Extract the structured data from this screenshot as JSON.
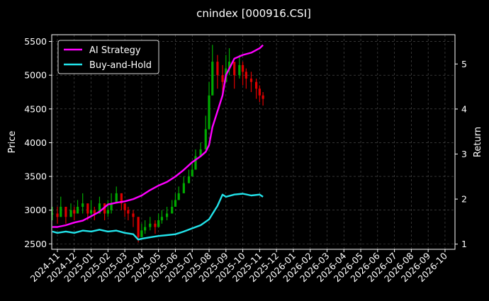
{
  "chart_data": {
    "type": "line",
    "title": "cnindex [000916.CSI]",
    "xlabel": "",
    "ylabel": "Price",
    "y2label": "Return",
    "grid": true,
    "legend_position": "top-left",
    "background": "#000000",
    "ylim": [
      2420,
      5600
    ],
    "y2lim": [
      0.885,
      5.65
    ],
    "yticks": [
      2500,
      3000,
      3500,
      4000,
      4500,
      5000,
      5500
    ],
    "y2ticks": [
      1,
      2,
      3,
      4,
      5
    ],
    "xticks": [
      "2024-11",
      "2024-12",
      "2025-01",
      "2025-02",
      "2025-03",
      "2025-04",
      "2025-05",
      "2025-06",
      "2025-07",
      "2025-08",
      "2025-09",
      "2025-10",
      "2025-11",
      "2025-12",
      "2026-01",
      "2026-02",
      "2026-03",
      "2026-04",
      "2026-05",
      "2026-06",
      "2026-07",
      "2026-08",
      "2026-09",
      "2026-10"
    ],
    "candle_up_color": "#00aa00",
    "candle_down_color": "#dd0000",
    "price_candles": {
      "description_units": "month index from 2024-11 (0) and price",
      "x": [
        -0.3,
        0.0,
        0.2,
        0.5,
        0.8,
        1.0,
        1.2,
        1.5,
        1.8,
        2.0,
        2.2,
        2.5,
        2.8,
        3.0,
        3.2,
        3.5,
        3.8,
        4.0,
        4.2,
        4.5,
        4.8,
        5.0,
        5.2,
        5.5,
        5.8,
        6.0,
        6.2,
        6.5,
        6.8,
        7.0,
        7.2,
        7.5,
        7.8,
        8.0,
        8.2,
        8.5,
        8.8,
        9.0,
        9.2,
        9.5,
        9.8,
        10.0,
        10.2,
        10.5,
        10.8,
        11.0,
        11.2,
        11.5,
        11.8,
        12.0,
        12.2
      ],
      "close": [
        2950,
        2900,
        3050,
        2900,
        3000,
        2950,
        3050,
        3100,
        2950,
        3000,
        2950,
        3100,
        2950,
        3000,
        3100,
        3250,
        3100,
        3000,
        2950,
        2900,
        2600,
        2700,
        2750,
        2800,
        2750,
        2850,
        2900,
        2950,
        3050,
        3150,
        3250,
        3400,
        3500,
        3600,
        3800,
        3900,
        4200,
        4700,
        5200,
        5000,
        4900,
        5100,
        5200,
        5000,
        5150,
        5050,
        4950,
        4900,
        4800,
        4700,
        4650
      ],
      "high": [
        3050,
        3050,
        3200,
        3050,
        3100,
        3050,
        3150,
        3250,
        3050,
        3150,
        3050,
        3200,
        3100,
        3150,
        3250,
        3350,
        3250,
        3100,
        3050,
        3000,
        2750,
        2800,
        2850,
        2900,
        2850,
        2950,
        3000,
        3050,
        3150,
        3250,
        3350,
        3500,
        3600,
        3700,
        3900,
        4000,
        4400,
        4900,
        5450,
        5300,
        5150,
        5300,
        5400,
        5200,
        5300,
        5200,
        5100,
        5050,
        4950,
        4850,
        4750
      ],
      "low": [
        2850,
        2800,
        2900,
        2800,
        2900,
        2850,
        2950,
        2950,
        2850,
        2900,
        2850,
        2950,
        2850,
        2900,
        2950,
        3100,
        3000,
        2900,
        2850,
        2750,
        2520,
        2600,
        2650,
        2700,
        2650,
        2750,
        2800,
        2850,
        2950,
        3050,
        3150,
        3300,
        3400,
        3500,
        3650,
        3800,
        3950,
        4400,
        4800,
        4800,
        4700,
        4900,
        5000,
        4800,
        4950,
        4850,
        4800,
        4750,
        4650,
        4600,
        4550
      ]
    },
    "series": [
      {
        "name": "AI Strategy",
        "color": "#ff00ff",
        "axis": "right",
        "x": [
          -0.3,
          0.0,
          0.5,
          1.0,
          1.5,
          2.0,
          2.5,
          3.0,
          3.5,
          4.0,
          4.5,
          5.0,
          5.5,
          6.0,
          6.5,
          7.0,
          7.5,
          8.0,
          8.5,
          8.8,
          9.0,
          9.2,
          9.5,
          9.8,
          10.0,
          10.5,
          11.0,
          11.5,
          12.0,
          12.2
        ],
        "values": [
          1.38,
          1.38,
          1.42,
          1.48,
          1.52,
          1.62,
          1.72,
          1.88,
          1.92,
          1.95,
          2.0,
          2.08,
          2.2,
          2.3,
          2.38,
          2.5,
          2.65,
          2.82,
          2.95,
          3.05,
          3.2,
          3.6,
          3.95,
          4.3,
          4.75,
          5.12,
          5.2,
          5.25,
          5.35,
          5.42
        ]
      },
      {
        "name": "Buy-and-Hold",
        "color": "#22e3ea",
        "axis": "right",
        "x": [
          -0.3,
          0.0,
          0.5,
          1.0,
          1.5,
          2.0,
          2.5,
          3.0,
          3.5,
          4.0,
          4.5,
          4.8,
          5.0,
          5.5,
          6.0,
          6.5,
          7.0,
          7.5,
          8.0,
          8.5,
          9.0,
          9.5,
          9.8,
          10.0,
          10.5,
          11.0,
          11.5,
          12.0,
          12.2
        ],
        "values": [
          1.28,
          1.25,
          1.28,
          1.25,
          1.3,
          1.28,
          1.32,
          1.28,
          1.3,
          1.25,
          1.22,
          1.1,
          1.12,
          1.15,
          1.18,
          1.2,
          1.22,
          1.28,
          1.35,
          1.42,
          1.55,
          1.85,
          2.1,
          2.05,
          2.1,
          2.12,
          2.08,
          2.1,
          2.05
        ]
      }
    ]
  }
}
